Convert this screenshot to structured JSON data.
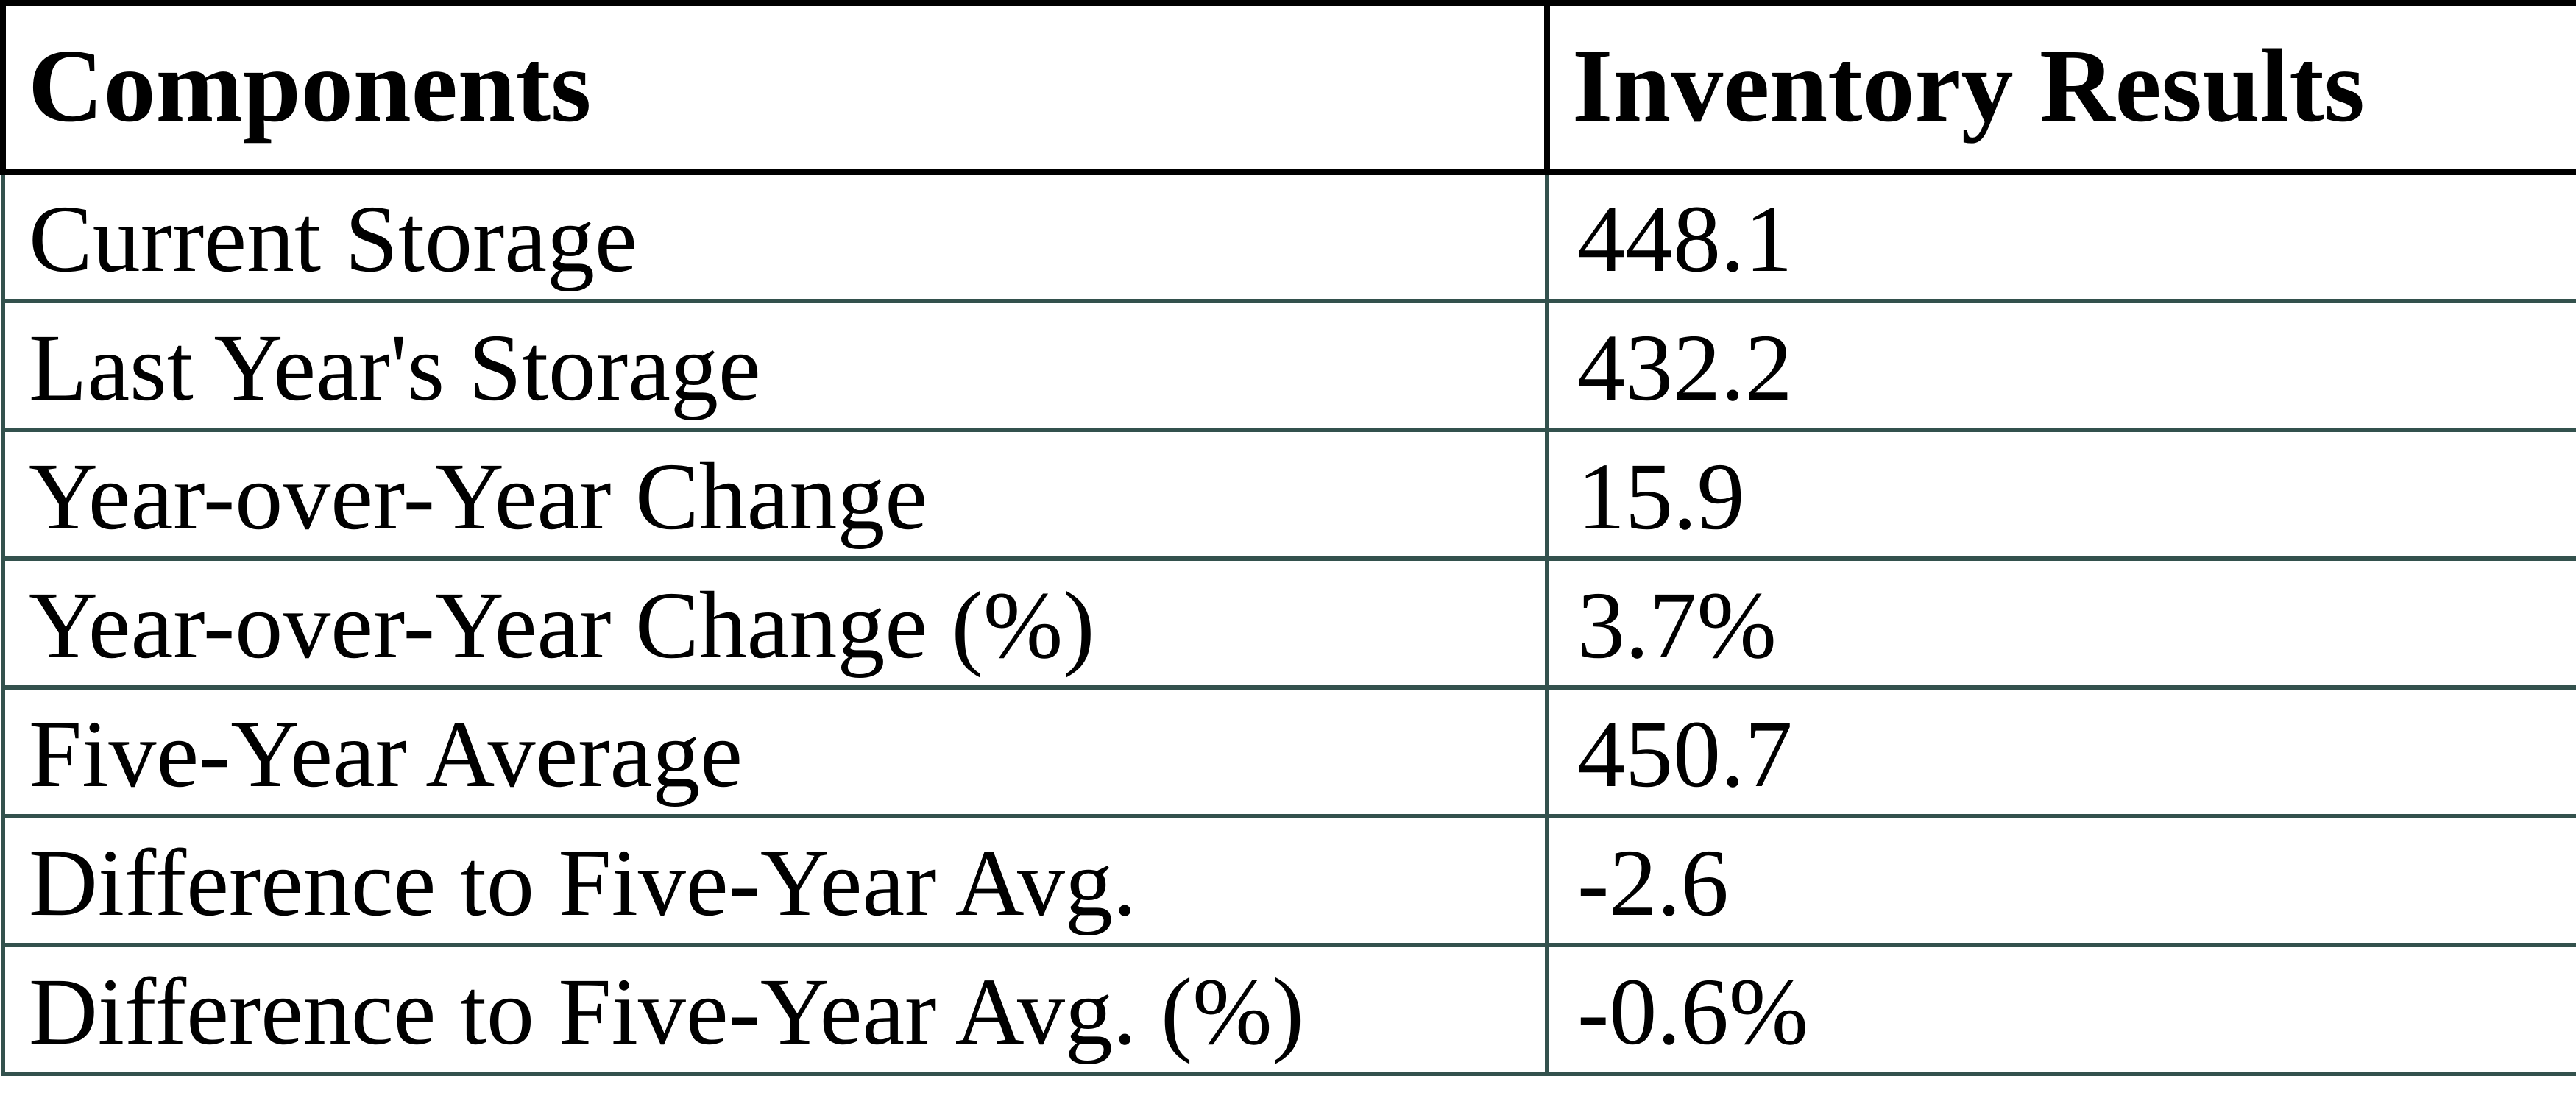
{
  "chart_data": {
    "type": "table",
    "title": "",
    "columns": [
      "Components",
      "Inventory Results"
    ],
    "rows": [
      [
        "Current Storage",
        "448.1"
      ],
      [
        "Last Year's Storage",
        "432.2"
      ],
      [
        "Year-over-Year Change",
        "15.9"
      ],
      [
        "Year-over-Year Change (%)",
        "3.7%"
      ],
      [
        "Five-Year Average",
        "450.7"
      ],
      [
        "Difference to Five-Year Avg.",
        "-2.6"
      ],
      [
        "Difference to Five-Year Avg. (%)",
        "-0.6%"
      ]
    ]
  },
  "colors": {
    "header_border": "#000000",
    "body_border": "#33514d",
    "text": "#000000",
    "background": "#ffffff"
  }
}
